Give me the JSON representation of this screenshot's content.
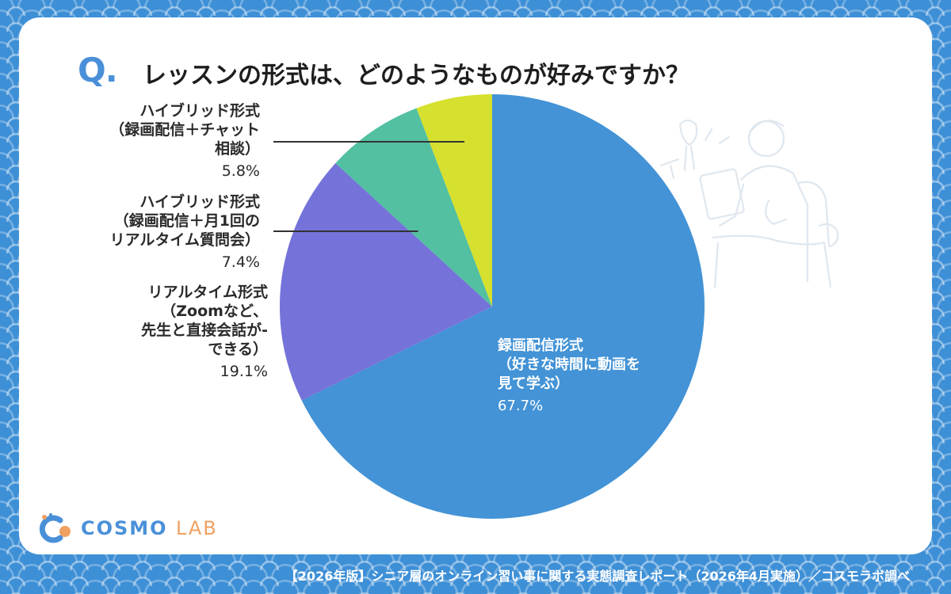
{
  "header": {
    "q_mark": "Q.",
    "title": "レッスンの形式は、どのようなものが好みですか？"
  },
  "chart_data": {
    "type": "pie",
    "title": "レッスンの形式は、どのようなものが好みですか？",
    "slices": [
      {
        "label_lines": [
          "録画配信形式",
          "（好きな時間に動画を",
          "見て学ぶ）"
        ],
        "value": 67.7,
        "value_label": "67.7%",
        "color": "#4393d6"
      },
      {
        "label_lines": [
          "リアルタイム形式",
          "（Zoomなど、",
          "先生と直接会話が-",
          "できる）"
        ],
        "value": 19.1,
        "value_label": "19.1%",
        "color": "#7573d9"
      },
      {
        "label_lines": [
          "ハイブリッド形式",
          "（録画配信＋月1回の",
          "リアルタイム質問会）"
        ],
        "value": 7.4,
        "value_label": "7.4%",
        "color": "#52c0a1"
      },
      {
        "label_lines": [
          "ハイブリッド形式",
          "（録画配信＋チャット",
          "相談）"
        ],
        "value": 5.8,
        "value_label": "5.8%",
        "color": "#d6e02e"
      }
    ]
  },
  "logo": {
    "main": "COSMO",
    "sub": "LAB"
  },
  "footer": "【2026年版】シニア層のオンライン習い事に関する実態調査レポート（2026年4月実施）／コスモラボ調べ"
}
